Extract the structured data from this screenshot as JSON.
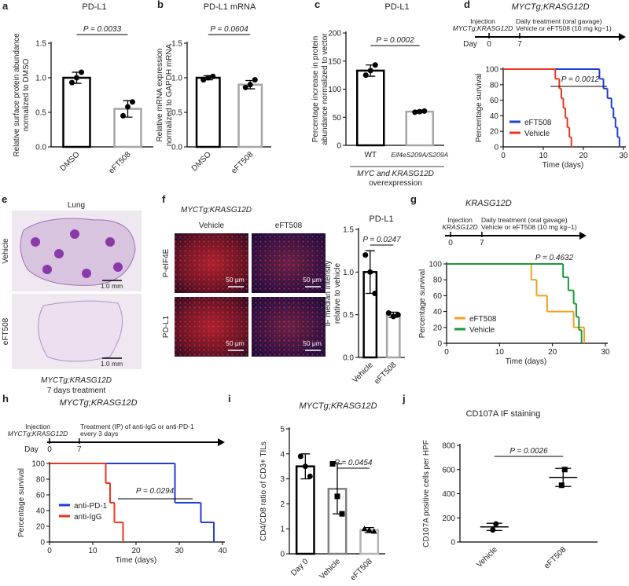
{
  "chart_data": [
    {
      "panel": "a",
      "type": "bar",
      "title": "PD-L1",
      "ylabel": [
        "Relative surface protein abundance",
        "normalized to DMSO"
      ],
      "categories": [
        "DMSO",
        "eFT508"
      ],
      "values": [
        1.0,
        0.55
      ],
      "errors": [
        0.08,
        0.12
      ],
      "points": [
        [
          0.93,
          1.0,
          1.08
        ],
        [
          0.45,
          0.58,
          0.65
        ]
      ],
      "markers": [
        "circle",
        "circle"
      ],
      "colors": [
        "#000000",
        "#a6a6a6"
      ],
      "ylim": [
        0,
        1.5
      ],
      "yticks": [
        {
          "value": 0,
          "label": "0.0"
        },
        0.5,
        {
          "value": 1,
          "label": "1.0"
        },
        1.5
      ],
      "annotation": "P = 0.0033"
    },
    {
      "panel": "b",
      "type": "bar",
      "title": "PD-L1 mRNA",
      "ylabel": [
        "Relative mRNA expression",
        "normalized to GAPDH mRNA"
      ],
      "categories": [
        "DMSO",
        "eFT508"
      ],
      "values": [
        1.0,
        0.9
      ],
      "errors": [
        0.03,
        0.06
      ],
      "points": [
        [
          0.97,
          1.0,
          1.02
        ],
        [
          0.86,
          0.9,
          0.97
        ]
      ],
      "markers": [
        "circle",
        "circle"
      ],
      "colors": [
        "#000000",
        "#a6a6a6"
      ],
      "ylim": [
        0,
        1.5
      ],
      "yticks": [
        {
          "value": 0,
          "label": "0.0"
        },
        0.5,
        {
          "value": 1,
          "label": "1.0"
        },
        1.5
      ],
      "annotation": "P = 0.0604"
    },
    {
      "panel": "c",
      "type": "bar",
      "title": "PD-L1",
      "ylabel": [
        "Percentage increase in protein",
        "abundance normalized to vector"
      ],
      "categories": [
        "WT",
        "Eif4eS209A/S209A"
      ],
      "values": [
        133,
        60
      ],
      "errors": [
        10,
        2
      ],
      "points": [
        [
          125,
          133,
          143
        ],
        [
          59,
          60,
          61
        ]
      ],
      "markers": [
        "circle",
        "circle"
      ],
      "colors": [
        "#000000",
        "#a6a6a6"
      ],
      "ylim": [
        0,
        200
      ],
      "yticks": [
        0,
        50,
        100,
        150,
        200
      ],
      "annotation": "P = 0.0002",
      "xlabel": [
        "MYC and KRASG12D",
        "overexpression"
      ]
    },
    {
      "panel": "d",
      "type": "line",
      "step": true,
      "header": "MYCTg;KRASG12D",
      "timeline": {
        "label": "Day",
        "ticks": [
          0,
          7
        ],
        "notes": [
          "Injection",
          "MYCTg;KRASG12D"
        ],
        "treatment": [
          "Daily treatment (oral gavage)",
          "Vehicle or eFT508 (10 mg kg−1)"
        ]
      },
      "xlabel": "Time (days)",
      "ylabel": "Percentage survival",
      "xlim": [
        0,
        30
      ],
      "xticks": [
        0,
        10,
        20,
        30
      ],
      "ylim": [
        0,
        100
      ],
      "yticks": [
        0,
        20,
        40,
        60,
        80,
        100
      ],
      "legend": "lower left",
      "annotation": "P = 0.0012",
      "series": [
        {
          "name": "eFT508",
          "color": "#1f3fd6",
          "x": [
            0,
            24,
            25,
            26,
            27,
            27.5,
            28,
            28.5,
            29
          ],
          "values": [
            100,
            87.5,
            75,
            62.5,
            50,
            37.5,
            25,
            12.5,
            0
          ]
        },
        {
          "name": "Vehicle",
          "color": "#ee3322",
          "x": [
            0,
            13,
            14,
            14.5,
            15,
            15.5,
            16,
            16.5,
            17
          ],
          "values": [
            100,
            87.5,
            75,
            62.5,
            50,
            37.5,
            25,
            12.5,
            0
          ]
        }
      ]
    },
    {
      "type": "bar",
      "title": "PD-L1",
      "ylabel": [
        "IF median intensity",
        "relative to vehicle"
      ],
      "categories": [
        "Vehicle",
        "eFT508"
      ],
      "values": [
        1.0,
        0.5
      ],
      "errors": [
        0.25,
        0.03
      ],
      "points": [
        [
          1.2,
          1.0,
          0.75
        ],
        [
          0.52,
          0.48,
          0.5
        ]
      ],
      "markers": [
        "circle",
        "circle"
      ],
      "colors": [
        "#000000",
        "#a6a6a6"
      ],
      "ylim": [
        0,
        1.5
      ],
      "yticks": [
        {
          "value": 0,
          "label": "0.0"
        },
        0.5,
        {
          "value": 1,
          "label": "1.0"
        },
        1.5
      ],
      "annotation": "P = 0.0247"
    },
    {
      "panel": "g",
      "type": "line",
      "step": true,
      "header": "KRASG12D",
      "timeline": {
        "ticks": [
          0,
          7
        ],
        "notes": [
          "Injection",
          "KRASG12D"
        ],
        "treatment": [
          "Daily treatment (oral gavage)",
          "Vehicle or eFT508 (10 mg kg−1)"
        ]
      },
      "xlabel": "Time (days)",
      "ylabel": "Percentage survival",
      "xlim": [
        0,
        30
      ],
      "xticks": [
        0,
        10,
        20,
        30
      ],
      "ylim": [
        0,
        100
      ],
      "yticks": [
        0,
        20,
        40,
        60,
        80,
        100
      ],
      "legend": "lower left",
      "annotation": "P = 0.4632",
      "series": [
        {
          "name": "eFT508",
          "color": "#f5a020",
          "x": [
            0,
            16,
            17,
            19,
            24,
            26
          ],
          "values": [
            100,
            80,
            60,
            40,
            20,
            0
          ]
        },
        {
          "name": "Vehicle",
          "color": "#1a9a3a",
          "x": [
            0,
            22,
            23,
            24,
            24.5,
            25,
            25.5
          ],
          "values": [
            100,
            83.3,
            66.7,
            50,
            33.3,
            16.7,
            0
          ]
        }
      ]
    },
    {
      "panel": "h",
      "type": "line",
      "step": true,
      "header": "MYCTg;KRASG12D",
      "timeline": {
        "label": "Day",
        "ticks": [
          0,
          7
        ],
        "notes": [
          "Injection",
          "MYCTg;KRASG12D"
        ],
        "treatment": [
          "Treatment (IP) of anti-IgG or anti-PD-1",
          "every 3 days"
        ]
      },
      "xlabel": "Time (days)",
      "ylabel": "Percentage survival",
      "xlim": [
        0,
        40
      ],
      "xticks": [
        0,
        10,
        20,
        30,
        40
      ],
      "ylim": [
        0,
        100
      ],
      "yticks": [
        0,
        20,
        40,
        60,
        80,
        100
      ],
      "legend": "lower left",
      "annotation": "P = 0.0294",
      "series": [
        {
          "name": "anti-PD-1",
          "color": "#1f3fd6",
          "x": [
            0,
            29,
            35,
            38
          ],
          "values": [
            100,
            50,
            25,
            0
          ]
        },
        {
          "name": "anti-IgG",
          "color": "#ee3322",
          "x": [
            0,
            13,
            14,
            15,
            17
          ],
          "values": [
            100,
            75,
            50,
            25,
            0
          ]
        }
      ]
    },
    {
      "panel": "i",
      "type": "bar",
      "title": "MYCTg;KRASG12D",
      "ylabel": [
        "CD4/CD8 ratio of CD3+ TILs"
      ],
      "categories": [
        "Day 0",
        "Vehicle",
        "eFT508"
      ],
      "values": [
        3.5,
        2.6,
        0.95
      ],
      "errors": [
        0.5,
        1.0,
        0.1
      ],
      "points": [
        [
          3.9,
          3.5,
          3.1
        ],
        [
          3.6,
          2.3,
          1.6
        ],
        [
          1.0,
          0.95,
          0.9
        ]
      ],
      "markers": [
        "circle",
        "square",
        "triangle"
      ],
      "colors": [
        "#000000",
        "#808080",
        "#b3b3b3"
      ],
      "ylim": [
        0,
        5
      ],
      "yticks": [
        0,
        1,
        2,
        3,
        4,
        5
      ],
      "annotation": "P = 0.0454"
    },
    {
      "panel": "j",
      "type": "dot",
      "title": "CD107A IF staining",
      "ylabel": [
        "CD107A positive cells per HPF"
      ],
      "categories": [
        "Vehicle",
        "eFT508"
      ],
      "values": [
        125,
        535
      ],
      "errors": [
        30,
        75
      ],
      "points": [
        [
          100,
          150
        ],
        [
          470,
          600
        ]
      ],
      "markers": [
        "circle",
        "square"
      ],
      "colors": [
        "#000000",
        "#000000"
      ],
      "ylim": [
        0,
        800
      ],
      "yticks": [
        0,
        200,
        400,
        600,
        800
      ],
      "annotation": "P = 0.0026"
    }
  ],
  "image_panels": [
    {
      "panel": "e",
      "title": "Lung",
      "rows": [
        "Vehicle",
        "eFT508"
      ],
      "scale_bars": [
        "1.0 mm",
        "1.0 mm"
      ],
      "caption": [
        "MYCTg;KRASG12D",
        "7 days treatment"
      ]
    },
    {
      "panel": "f",
      "title": "MYCTg;KRASG12D",
      "columns": [
        "Vehicle",
        "eFT508"
      ],
      "rows": [
        "P-eIF4E",
        "PD-L1"
      ],
      "scale_bars": [
        "50 μm",
        "50 μm",
        "50 μm",
        "50 μm"
      ]
    }
  ]
}
